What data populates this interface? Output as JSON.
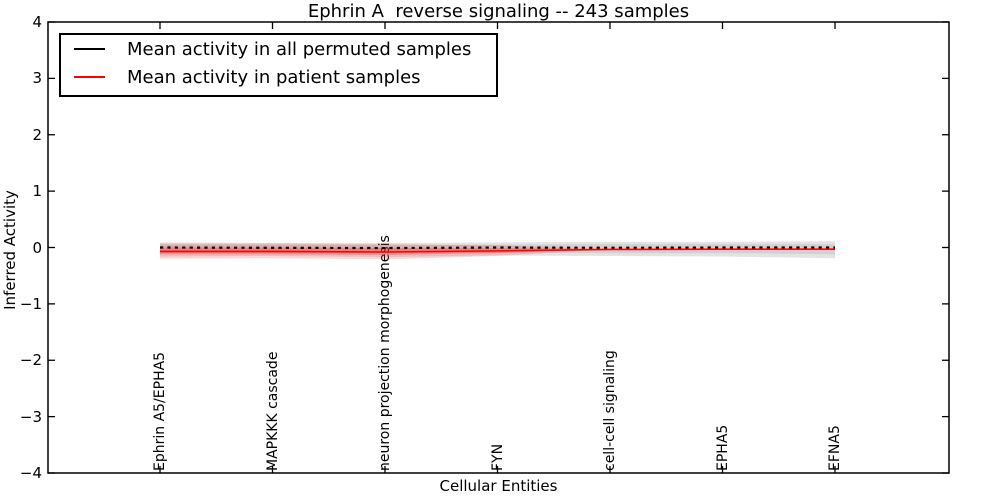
{
  "chart_data": {
    "type": "line",
    "title": "Ephrin A  reverse signaling -- 243 samples",
    "xlabel": "Cellular Entities",
    "ylabel": "Inferred Activity",
    "ylim": [
      -4,
      4
    ],
    "grid": false,
    "legend_position": "upper left",
    "frame_color": "#000000",
    "y_ticks": {
      "values": [
        4,
        3,
        2,
        1,
        0,
        -1,
        -2,
        -3,
        -4
      ],
      "labels": [
        "4",
        "3",
        "2",
        "1",
        "0",
        "−1",
        "−2",
        "−3",
        "−4"
      ]
    },
    "categories": [
      "Ephrin A5/EPHA5",
      "MAPKKK cascade",
      "neuron projection morphogenesis",
      "FYN",
      "cell-cell signaling",
      "EPHA5",
      "EFNA5"
    ],
    "series": [
      {
        "name": "Mean activity in all permuted samples",
        "color": "#000000",
        "style": "dashed",
        "width": 2.2,
        "x": [
          0,
          1,
          2,
          3,
          4,
          5,
          6
        ],
        "values": [
          0.0,
          -0.005,
          -0.01,
          0.0,
          -0.005,
          0.0,
          0.0
        ]
      },
      {
        "name": "Mean activity in patient samples",
        "color": "#ff0000",
        "style": "solid",
        "width": 1.6,
        "x": [
          0,
          1,
          2,
          3,
          4,
          5,
          6
        ],
        "values": [
          -0.07,
          -0.07,
          -0.08,
          -0.06,
          -0.035,
          -0.03,
          -0.03
        ]
      }
    ],
    "bands": [
      {
        "name": "permuted-samples-range-outer",
        "color": "#808080",
        "opacity": 0.22,
        "x": [
          0,
          1,
          2,
          3,
          4,
          5,
          6
        ],
        "upper": [
          0.09,
          0.08,
          0.08,
          0.09,
          0.1,
          0.1,
          0.11
        ],
        "lower": [
          -0.16,
          -0.15,
          -0.17,
          -0.14,
          -0.15,
          -0.16,
          -0.19
        ]
      },
      {
        "name": "permuted-samples-range-inner",
        "color": "#808080",
        "opacity": 0.18,
        "x": [
          0,
          1,
          2,
          3,
          4,
          5,
          6
        ],
        "upper": [
          0.05,
          0.05,
          0.04,
          0.05,
          0.06,
          0.06,
          0.06
        ],
        "lower": [
          -0.1,
          -0.1,
          -0.11,
          -0.09,
          -0.1,
          -0.1,
          -0.12
        ]
      },
      {
        "name": "patient-samples-range-outer",
        "color": "#ff0000",
        "opacity": 0.16,
        "x": [
          0,
          1,
          2,
          3,
          4
        ],
        "upper": [
          0.07,
          0.07,
          0.06,
          0.04,
          -0.03
        ],
        "lower": [
          -0.2,
          -0.19,
          -0.21,
          -0.15,
          -0.03
        ]
      },
      {
        "name": "patient-samples-range-inner",
        "color": "#ff0000",
        "opacity": 0.25,
        "x": [
          0,
          1,
          2,
          3,
          4
        ],
        "upper": [
          0.0,
          0.0,
          -0.01,
          -0.01,
          -0.03
        ],
        "lower": [
          -0.12,
          -0.12,
          -0.13,
          -0.1,
          -0.03
        ]
      }
    ]
  }
}
